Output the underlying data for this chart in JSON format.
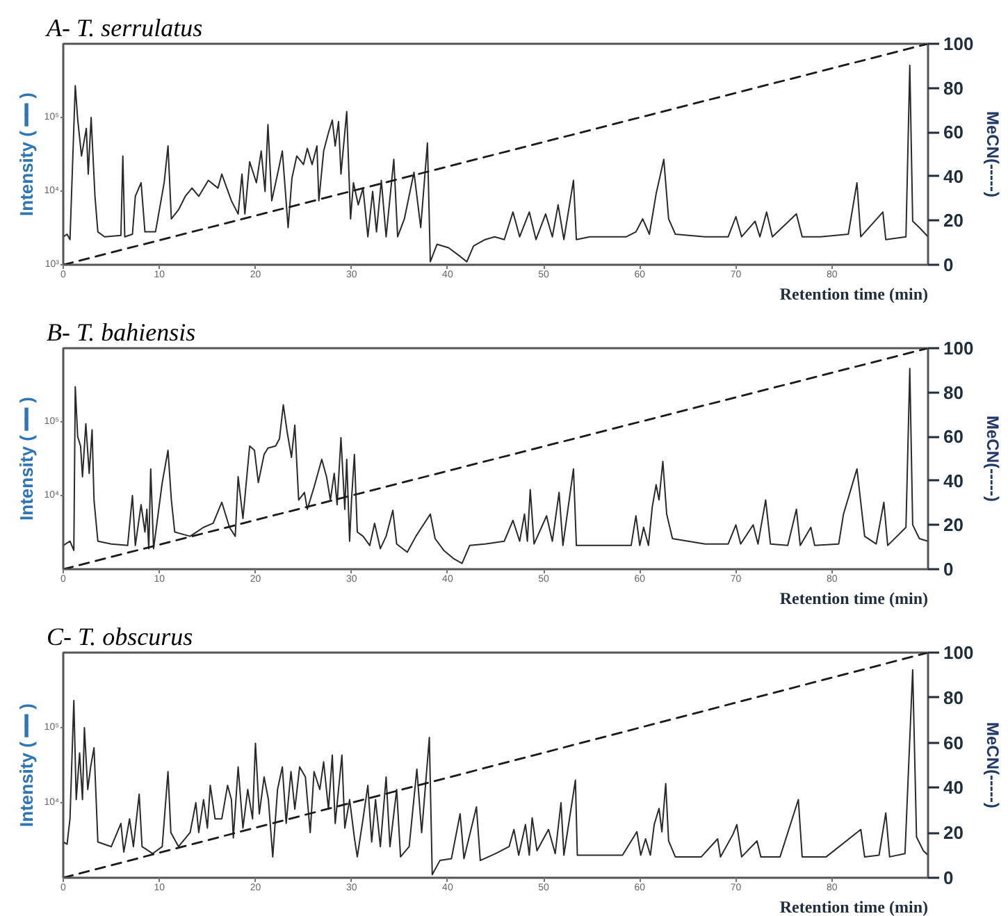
{
  "chart_data": [
    {
      "type": "line",
      "title": "A- T. serrulatus",
      "xlabel": "Retention time (min)",
      "ylabel": "Intensity ( ━━ )",
      "y2label": "MeCN(-----)",
      "log": "y",
      "xlim": [
        0,
        90
      ],
      "xticks": [
        0,
        10,
        20,
        30,
        40,
        50,
        60,
        70,
        80
      ],
      "ylim": [
        1000,
        1000000
      ],
      "yticks": [
        {
          "value": 1000,
          "label": "10³"
        },
        {
          "value": 10000,
          "label": "10⁴"
        },
        {
          "value": 100000,
          "label": "10⁵"
        }
      ],
      "y2lim": [
        0,
        100
      ],
      "y2ticks": [
        0,
        20,
        40,
        60,
        80,
        100
      ],
      "series": [
        {
          "color": "#2a2a2a",
          "line_style": "solid",
          "x": [
            0,
            0.4,
            0.7,
            1.25,
            1.5,
            1.9,
            2.4,
            2.6,
            2.9,
            3.3,
            3.6,
            4.3,
            6.0,
            6.2,
            6.4,
            7.2,
            7.5,
            8.1,
            8.5,
            9.6,
            10.5,
            10.9,
            11.25,
            12.0,
            12.7,
            13.4,
            14.1,
            15.1,
            16.1,
            16.5,
            17.5,
            18.2,
            18.6,
            18.9,
            19.4,
            20.1,
            20.6,
            21.0,
            21.3,
            21.7,
            22.3,
            22.8,
            23.4,
            23.8,
            24.3,
            25.0,
            25.4,
            25.9,
            26.4,
            26.6,
            27.1,
            27.6,
            28.0,
            28.3,
            28.65,
            28.9,
            29.5,
            29.9,
            30.2,
            30.7,
            31.2,
            31.7,
            32.2,
            32.6,
            33.1,
            33.6,
            34.4,
            34.8,
            35.5,
            36.5,
            37.2,
            37.9,
            38.2,
            38.9,
            40.1,
            41.3,
            42.0,
            42.7,
            43.9,
            44.9,
            45.9,
            46.8,
            47.5,
            48.5,
            49.2,
            50.2,
            50.9,
            51.5,
            52.1,
            53.1,
            53.4,
            54.8,
            56.7,
            58.6,
            59.6,
            60.3,
            61.0,
            61.7,
            62.5,
            63.0,
            63.7,
            66.8,
            69.2,
            70.0,
            70.6,
            72.0,
            72.5,
            73.2,
            73.8,
            76.3,
            76.9,
            78.8,
            81.7,
            82.6,
            83.0,
            85.3,
            85.6,
            87.7,
            88.1,
            88.4,
            89.1,
            90.0
          ],
          "values": [
            2400,
            2600,
            2200,
            270000,
            95000,
            30000,
            71000,
            17000,
            100000,
            8500,
            2800,
            2400,
            2500,
            30000,
            2400,
            2600,
            8500,
            13000,
            2800,
            2800,
            13000,
            41000,
            4200,
            5600,
            8500,
            11000,
            8500,
            14000,
            11000,
            17000,
            7400,
            4900,
            17000,
            4900,
            25000,
            13000,
            35000,
            9900,
            80000,
            7400,
            17000,
            35000,
            3200,
            15000,
            30000,
            23000,
            38000,
            23000,
            41000,
            7400,
            35000,
            62000,
            92000,
            41000,
            88000,
            17000,
            120000,
            4200,
            13000,
            6500,
            11000,
            2400,
            9900,
            2800,
            14000,
            2400,
            27000,
            2400,
            4200,
            18000,
            3200,
            45000,
            1100,
            1900,
            1700,
            1300,
            1100,
            1800,
            2200,
            2400,
            2200,
            5200,
            2400,
            5200,
            2200,
            4900,
            2400,
            6500,
            2200,
            14000,
            2200,
            2400,
            2400,
            2400,
            2800,
            4200,
            2600,
            9200,
            27000,
            4200,
            2600,
            2400,
            2400,
            4500,
            2400,
            3900,
            2400,
            5200,
            2400,
            4900,
            2400,
            2400,
            2600,
            13000,
            2400,
            5200,
            2200,
            2400,
            510000,
            3900,
            3200,
            2400
          ]
        },
        {
          "color": "#1a1a1a",
          "line_style": "dashed",
          "axis": "y2",
          "x": [
            0,
            90
          ],
          "values": [
            0,
            100
          ]
        }
      ]
    },
    {
      "type": "line",
      "title": "B- T. bahiensis",
      "xlabel": "Retention time (min)",
      "ylabel": "Intensity ( ━━ )",
      "y2label": "MeCN(-----)",
      "log": "y",
      "xlim": [
        0,
        90
      ],
      "xticks": [
        0,
        10,
        20,
        30,
        40,
        50,
        60,
        70,
        80
      ],
      "ylim": [
        1000,
        1000000
      ],
      "yticks": [
        {
          "value": 10000,
          "label": "10⁴"
        },
        {
          "value": 100000,
          "label": "10⁵"
        }
      ],
      "y2lim": [
        0,
        100
      ],
      "y2ticks": [
        0,
        20,
        40,
        60,
        80,
        100
      ],
      "series": [
        {
          "color": "#2a2a2a",
          "line_style": "solid",
          "x": [
            0,
            0.7,
            1.1,
            1.25,
            1.5,
            1.8,
            2.0,
            2.35,
            2.7,
            3.0,
            3.2,
            3.6,
            5.0,
            6.7,
            7.2,
            7.5,
            8.1,
            8.5,
            8.7,
            8.9,
            9.1,
            9.4,
            10.3,
            10.9,
            11.25,
            11.6,
            13.2,
            14.6,
            15.6,
            16.5,
            17.3,
            17.9,
            18.2,
            18.7,
            19.4,
            19.9,
            20.3,
            20.9,
            21.3,
            22.1,
            22.5,
            22.9,
            23.3,
            23.75,
            24.1,
            24.5,
            25.1,
            25.4,
            26.1,
            26.9,
            27.4,
            27.8,
            28.2,
            28.5,
            28.9,
            29.3,
            29.5,
            29.8,
            30.0,
            30.3,
            30.6,
            31.2,
            31.9,
            32.4,
            33.0,
            33.6,
            34.3,
            34.7,
            35.8,
            36.7,
            38.2,
            38.7,
            39.6,
            40.6,
            41.5,
            42.3,
            43.9,
            45.9,
            46.8,
            47.5,
            48.0,
            48.3,
            48.6,
            49.0,
            50.3,
            50.9,
            51.6,
            52.0,
            53.1,
            53.4,
            56.2,
            59.1,
            59.6,
            60.0,
            60.4,
            60.9,
            61.3,
            61.7,
            62.0,
            62.4,
            62.8,
            63.4,
            66.8,
            69.2,
            70.0,
            70.5,
            71.8,
            72.3,
            73.1,
            73.6,
            75.4,
            76.3,
            76.7,
            77.8,
            78.2,
            80.7,
            81.2,
            82.6,
            83.4,
            84.6,
            85.4,
            85.8,
            87.7,
            88.1,
            88.4,
            89.1,
            90.0
          ],
          "values": [
            2100,
            2400,
            1800,
            300000,
            63000,
            47000,
            18000,
            94000,
            20000,
            78000,
            8700,
            2400,
            2200,
            2100,
            10000,
            2100,
            7500,
            3200,
            6500,
            1900,
            23000,
            1900,
            15000,
            41000,
            8700,
            3200,
            2800,
            3700,
            4200,
            8100,
            3700,
            2800,
            18000,
            4900,
            47000,
            41000,
            15000,
            36000,
            44000,
            47000,
            59000,
            170000,
            73000,
            33000,
            90000,
            8700,
            11000,
            6500,
            13000,
            31000,
            18000,
            8700,
            20000,
            7500,
            61000,
            6500,
            31000,
            2400,
            8700,
            36000,
            3200,
            2800,
            2100,
            4200,
            1900,
            2800,
            6300,
            2200,
            1700,
            2800,
            5600,
            2600,
            1800,
            1400,
            1200,
            2100,
            2200,
            2400,
            4600,
            2400,
            5600,
            2400,
            12000,
            2200,
            5300,
            2400,
            11000,
            2100,
            23000,
            2100,
            2100,
            2100,
            5300,
            2100,
            3700,
            2100,
            7000,
            14000,
            8700,
            29000,
            5600,
            2600,
            2200,
            2200,
            4000,
            2200,
            4000,
            2200,
            8700,
            2200,
            2100,
            6500,
            2100,
            3700,
            2100,
            2200,
            5600,
            23000,
            2800,
            2200,
            8100,
            2100,
            3700,
            530000,
            4000,
            2600,
            2400
          ]
        },
        {
          "color": "#1a1a1a",
          "line_style": "dashed",
          "axis": "y2",
          "x": [
            0,
            90
          ],
          "values": [
            0,
            100
          ]
        }
      ]
    },
    {
      "type": "line",
      "title": "C- T. obscurus",
      "xlabel": "Retention time (min)",
      "ylabel": "Intensity ( ━━ )",
      "y2label": "MeCN(-----)",
      "log": "y",
      "xlim": [
        0,
        90
      ],
      "xticks": [
        0,
        10,
        20,
        30,
        40,
        50,
        60,
        70,
        80
      ],
      "ylim": [
        1000,
        1000000
      ],
      "yticks": [
        {
          "value": 10000,
          "label": "10⁴"
        },
        {
          "value": 100000,
          "label": "10⁵"
        }
      ],
      "y2lim": [
        0,
        100
      ],
      "y2ticks": [
        0,
        20,
        40,
        60,
        80,
        100
      ],
      "series": [
        {
          "color": "#2a2a2a",
          "line_style": "solid",
          "x": [
            0,
            0.4,
            0.7,
            1.1,
            1.35,
            1.7,
            2.0,
            2.2,
            2.55,
            2.85,
            3.2,
            3.4,
            3.6,
            5.0,
            6.0,
            6.3,
            6.9,
            7.3,
            7.9,
            8.2,
            9.3,
            10.3,
            10.9,
            11.2,
            12.0,
            13.2,
            13.8,
            14.1,
            14.6,
            15.0,
            15.3,
            15.8,
            16.5,
            17.1,
            17.5,
            17.7,
            18.2,
            18.7,
            19.2,
            19.7,
            20.0,
            20.4,
            20.9,
            21.35,
            21.8,
            22.3,
            22.8,
            23.2,
            23.7,
            24.1,
            24.6,
            25.2,
            25.7,
            26.1,
            26.7,
            27.1,
            27.6,
            28.0,
            28.3,
            29.0,
            29.3,
            29.8,
            30.3,
            30.6,
            31.2,
            31.7,
            32.1,
            32.5,
            33.0,
            33.6,
            34.0,
            34.7,
            35.1,
            36.0,
            36.8,
            37.3,
            38.1,
            38.4,
            39.2,
            40.4,
            41.3,
            41.7,
            43.0,
            43.4,
            45.0,
            46.4,
            46.9,
            47.4,
            48.1,
            48.5,
            48.8,
            49.3,
            50.5,
            51.2,
            51.8,
            52.1,
            53.3,
            53.5,
            55.8,
            58.2,
            59.7,
            60.1,
            60.6,
            61.1,
            61.5,
            62.0,
            62.3,
            62.7,
            63.0,
            63.7,
            66.4,
            68.1,
            68.4,
            69.7,
            70.1,
            70.6,
            72.2,
            72.6,
            74.6,
            76.5,
            76.9,
            79.4,
            83.0,
            83.4,
            84.9,
            85.6,
            86.0,
            87.6,
            88.4,
            88.8,
            89.5,
            90.0
          ],
          "values": [
            3000,
            2800,
            6100,
            230000,
            11000,
            46000,
            11000,
            100000,
            15000,
            30000,
            54000,
            13000,
            3000,
            2600,
            5300,
            2200,
            6100,
            2600,
            13000,
            2600,
            2100,
            2600,
            26000,
            4000,
            2600,
            4000,
            10000,
            4000,
            11000,
            4600,
            17000,
            6100,
            6100,
            17000,
            11000,
            3400,
            30000,
            4600,
            15000,
            6100,
            62000,
            7100,
            22000,
            11000,
            1900,
            15000,
            30000,
            5300,
            26000,
            8200,
            30000,
            22000,
            4000,
            26000,
            15000,
            35000,
            8200,
            43000,
            5300,
            43000,
            4600,
            11000,
            3400,
            1900,
            6100,
            17000,
            3000,
            11000,
            2600,
            22000,
            2600,
            15000,
            1900,
            2600,
            28000,
            4000,
            74000,
            1100,
            1700,
            1800,
            7100,
            1800,
            8800,
            1700,
            2100,
            2600,
            4400,
            2000,
            5100,
            2000,
            6300,
            2300,
            4400,
            2100,
            10000,
            2000,
            20000,
            2000,
            2000,
            2000,
            4100,
            2000,
            3300,
            2000,
            5100,
            8400,
            4100,
            18000,
            3100,
            1900,
            1900,
            3300,
            1900,
            3800,
            5100,
            1900,
            3100,
            1900,
            1900,
            11000,
            1900,
            1900,
            4400,
            1900,
            2000,
            7300,
            1900,
            2100,
            590000,
            3500,
            2300,
            2000
          ]
        },
        {
          "color": "#1a1a1a",
          "line_style": "dashed",
          "axis": "y2",
          "x": [
            0,
            90
          ],
          "values": [
            0,
            100
          ]
        }
      ]
    }
  ]
}
